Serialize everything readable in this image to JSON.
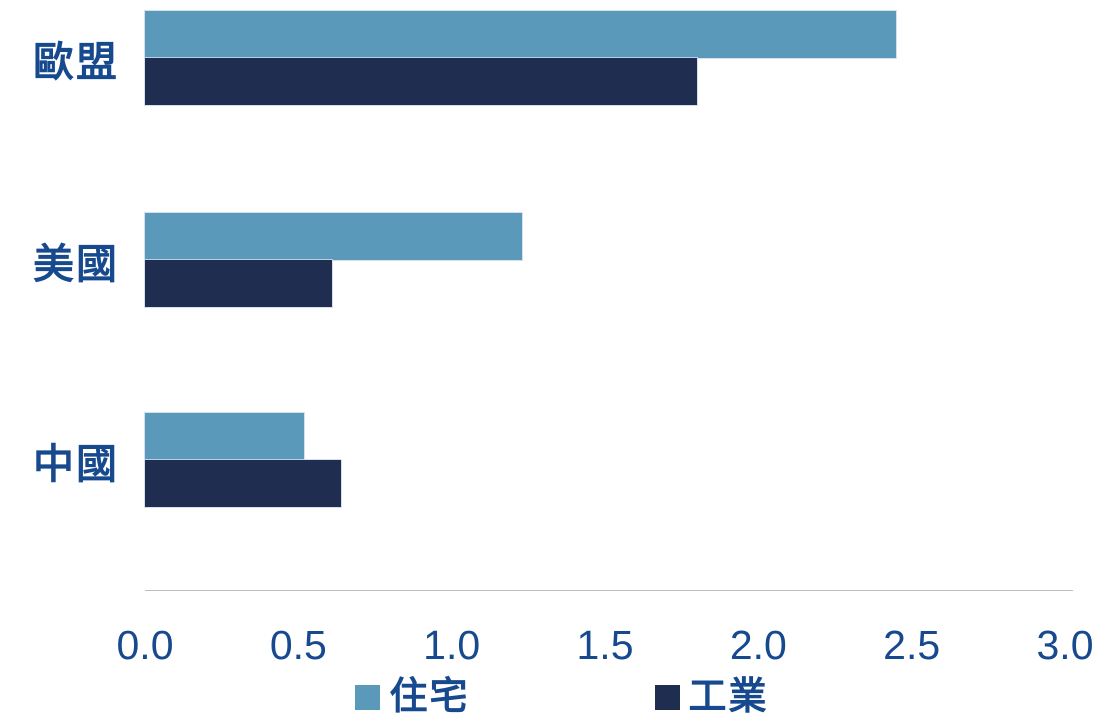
{
  "chart_data": {
    "type": "bar",
    "orientation": "horizontal",
    "title": "",
    "xlabel": "",
    "ylabel": "",
    "categories": [
      "歐盟",
      "美國",
      "中國"
    ],
    "series": [
      {
        "name": "住宅",
        "color": "#5B99BB",
        "values": [
          2.45,
          1.23,
          0.52
        ]
      },
      {
        "name": "工業",
        "color": "#1F2D50",
        "values": [
          1.8,
          0.61,
          0.64
        ]
      }
    ],
    "x_ticks": [
      "0.0",
      "0.5",
      "1.0",
      "1.5",
      "2.0",
      "2.5",
      "3.0"
    ],
    "xlim": [
      0,
      3.0
    ],
    "grid": false,
    "legend_position": "bottom"
  },
  "colors": {
    "text_blue": "#17498F",
    "axis_line_gray": "#BDBDBD",
    "background": "#FFFFFF",
    "series_residential": "#5B99BB",
    "series_industrial": "#1F2D50"
  }
}
